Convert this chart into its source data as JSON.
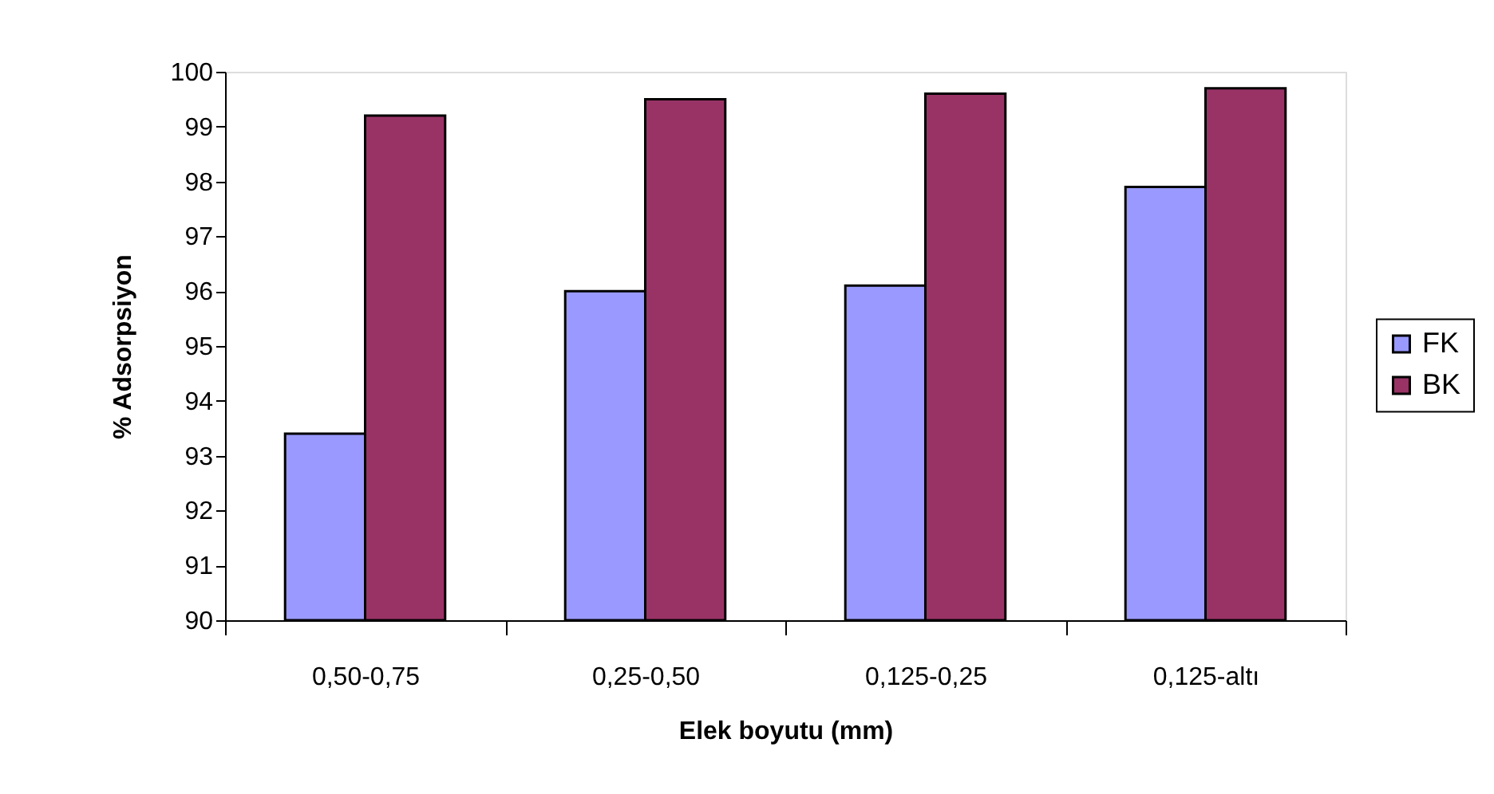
{
  "chart_data": {
    "type": "bar",
    "xlabel": "Elek boyutu (mm)",
    "ylabel": "% Adsorpsiyon",
    "categories": [
      "0,50-0,75",
      "0,25-0,50",
      "0,125-0,25",
      "0,125-altı"
    ],
    "series": [
      {
        "name": "FK",
        "color": "#9999ff",
        "values": [
          93.4,
          96.0,
          96.1,
          97.9
        ]
      },
      {
        "name": "BK",
        "color": "#993366",
        "values": [
          99.2,
          99.5,
          99.6,
          99.7
        ]
      }
    ],
    "ylim": [
      90,
      100
    ],
    "yticks": [
      90,
      91,
      92,
      93,
      94,
      95,
      96,
      97,
      98,
      99,
      100
    ],
    "grid": false,
    "legend": "right"
  }
}
